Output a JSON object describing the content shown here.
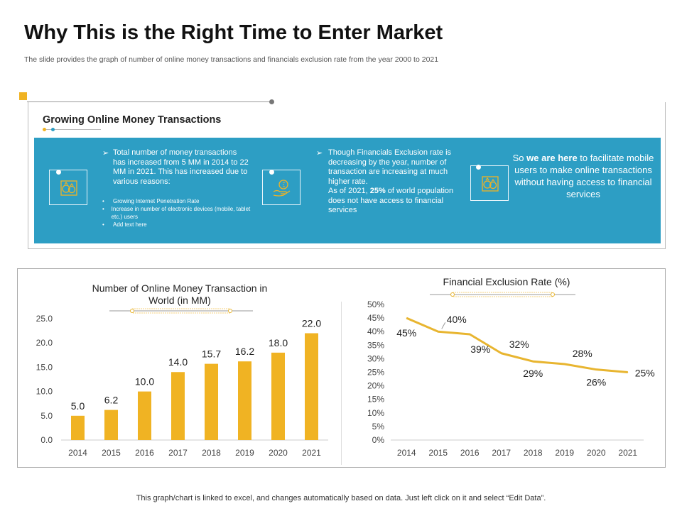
{
  "header": {
    "title": "Why This is the Right Time to Enter Market",
    "subtitle": "The slide provides the graph of number of online money transactions and financials exclusion rate from the year 2000 to 2021"
  },
  "section": {
    "heading": "Growing Online Money Transactions",
    "col1": {
      "icon": "money-bags-icon",
      "bullet": "Total number of money transactions has increased from 5 MM in 2014 to 22 MM in 2021. This has increased due to various reasons:",
      "sub_items": [
        "Growing Internet Penetration Rate",
        "Increase in number of electronic devices (mobile, tablet etc.) users",
        "Add text here"
      ]
    },
    "col2": {
      "icon": "hand-coin-icon",
      "bullet_line1": "Though Financials Exclusion rate is decreasing by the year, number of transaction are increasing at much higher rate.",
      "bullet_line2_pre": "As of 2021, ",
      "bullet_line2_bold": "25%",
      "bullet_line2_post": " of world population does not have access to financial services"
    },
    "col3": {
      "icon": "money-bags-icon",
      "pre": "So ",
      "bold": "we are here",
      "post": " to facilitate mobile users to make online transactions without having access to financial services"
    }
  },
  "colors": {
    "accent": "#f0b323",
    "panel": "#2d9ec4",
    "line": "#e8b530"
  },
  "chart_data": [
    {
      "type": "bar",
      "title": "Number of Online Money Transaction in World (in MM)",
      "categories": [
        "2014",
        "2015",
        "2016",
        "2017",
        "2018",
        "2019",
        "2020",
        "2021"
      ],
      "values": [
        5.0,
        6.2,
        10.0,
        14.0,
        15.7,
        16.2,
        18.0,
        22.0
      ],
      "value_labels": [
        "5.0",
        "6.2",
        "10.0",
        "14.0",
        "15.7",
        "16.2",
        "18.0",
        "22.0"
      ],
      "ylim": [
        0,
        25
      ],
      "yticks": [
        "0.0",
        "5.0",
        "10.0",
        "15.0",
        "20.0",
        "25.0"
      ],
      "grid": false
    },
    {
      "type": "line",
      "title": "Financial Exclusion Rate (%)",
      "categories": [
        "2014",
        "2015",
        "2016",
        "2017",
        "2018",
        "2019",
        "2020",
        "2021"
      ],
      "values": [
        45,
        40,
        39,
        32,
        29,
        28,
        26,
        25
      ],
      "value_labels": [
        "45%",
        "40%",
        "39%",
        "32%",
        "29%",
        "28%",
        "26%",
        "25%"
      ],
      "ylim": [
        0,
        50
      ],
      "yticks": [
        "0%",
        "5%",
        "10%",
        "15%",
        "20%",
        "25%",
        "30%",
        "35%",
        "40%",
        "45%",
        "50%"
      ],
      "grid": false
    }
  ],
  "footer": {
    "note": "This graph/chart is linked to excel, and changes automatically based on data. Just left click on it and select “Edit Data”."
  }
}
